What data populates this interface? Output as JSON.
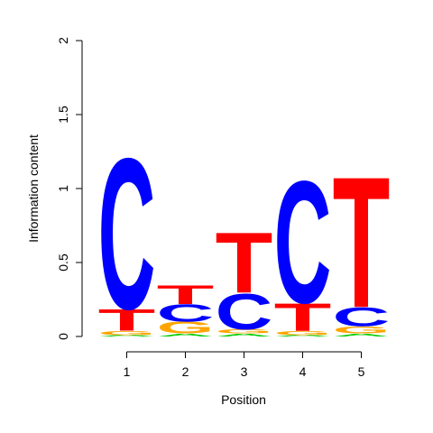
{
  "chart_data": {
    "type": "sequence-logo",
    "xlabel": "Position",
    "ylabel": "Information content",
    "ylim": [
      0,
      2
    ],
    "yticks": [
      "0",
      "0.5",
      "1",
      "1.5",
      "2"
    ],
    "yticks_values": [
      0,
      0.5,
      1,
      1.5,
      2
    ],
    "xticks": [
      "1",
      "2",
      "3",
      "4",
      "5"
    ],
    "colors": {
      "A": "#00cc00",
      "C": "#0000ff",
      "G": "#ffa500",
      "T": "#ff0000"
    },
    "positions": [
      {
        "position": "1",
        "letters": [
          {
            "letter": "A",
            "height": 0.01
          },
          {
            "letter": "G",
            "height": 0.03
          },
          {
            "letter": "T",
            "height": 0.15
          },
          {
            "letter": "C",
            "height": 1.05
          }
        ]
      },
      {
        "position": "2",
        "letters": [
          {
            "letter": "A",
            "height": 0.02
          },
          {
            "letter": "G",
            "height": 0.08
          },
          {
            "letter": "C",
            "height": 0.12
          },
          {
            "letter": "T",
            "height": 0.13
          }
        ]
      },
      {
        "position": "3",
        "letters": [
          {
            "letter": "A",
            "height": 0.02
          },
          {
            "letter": "G",
            "height": 0.03
          },
          {
            "letter": "C",
            "height": 0.25
          },
          {
            "letter": "T",
            "height": 0.42
          }
        ]
      },
      {
        "position": "4",
        "letters": [
          {
            "letter": "A",
            "height": 0.01
          },
          {
            "letter": "G",
            "height": 0.03
          },
          {
            "letter": "T",
            "height": 0.19
          },
          {
            "letter": "C",
            "height": 0.85
          }
        ]
      },
      {
        "position": "5",
        "letters": [
          {
            "letter": "A",
            "height": 0.02
          },
          {
            "letter": "G",
            "height": 0.05
          },
          {
            "letter": "C",
            "height": 0.13
          },
          {
            "letter": "T",
            "height": 0.91
          }
        ]
      }
    ]
  }
}
